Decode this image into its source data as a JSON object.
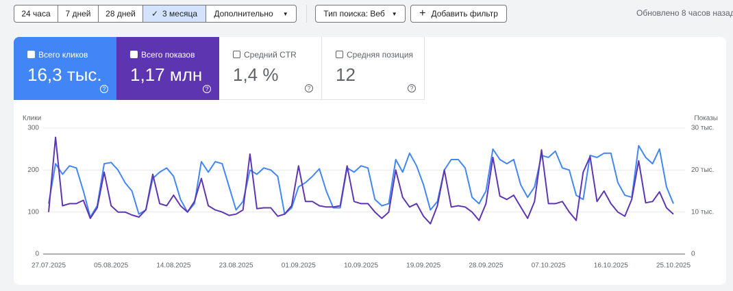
{
  "toolbar": {
    "periods": [
      "24 часа",
      "7 дней",
      "28 дней",
      "3 месяца"
    ],
    "more": "Дополнительно",
    "search_type": "Тип поиска: Веб",
    "add_filter": "Добавить фильтр",
    "updated": "Обновлено 8 часов назад"
  },
  "metrics": [
    {
      "label": "Всего кликов",
      "value": "16,3 тыс."
    },
    {
      "label": "Всего показов",
      "value": "1,17 млн"
    },
    {
      "label": "Средний CTR",
      "value": "1,4 %"
    },
    {
      "label": "Средняя позиция",
      "value": "12"
    }
  ],
  "chart_data": {
    "type": "line",
    "y_label": "Клики",
    "y2_label": "Показы",
    "categories": [
      "27.07.2025",
      null,
      null,
      null,
      null,
      null,
      null,
      null,
      null,
      "05.08.2025",
      null,
      null,
      null,
      null,
      null,
      null,
      null,
      null,
      "14.08.2025",
      null,
      null,
      null,
      null,
      null,
      null,
      null,
      null,
      "23.08.2025",
      null,
      null,
      null,
      null,
      null,
      null,
      null,
      null,
      "01.09.2025",
      null,
      null,
      null,
      null,
      null,
      null,
      null,
      null,
      "10.09.2025",
      null,
      null,
      null,
      null,
      null,
      null,
      null,
      null,
      "19.09.2025",
      null,
      null,
      null,
      null,
      null,
      null,
      null,
      null,
      "28.09.2025",
      null,
      null,
      null,
      null,
      null,
      null,
      null,
      null,
      "07.10.2025",
      null,
      null,
      null,
      null,
      null,
      null,
      null,
      null,
      "16.10.2025",
      null,
      null,
      null,
      null,
      null,
      null,
      null,
      null,
      "25.10.2025"
    ],
    "ylim": [
      0,
      300
    ],
    "yticks": [
      0,
      100,
      200,
      300
    ],
    "y2lim": [
      0,
      30000
    ],
    "y2ticks": [
      0,
      {
        "value": 10000,
        "label": "10 тыс."
      },
      {
        "value": 20000,
        "label": "20 тыс."
      },
      {
        "value": 30000,
        "label": "30 тыс."
      }
    ],
    "grid": true,
    "series": [
      {
        "name": "Всего кликов",
        "color": "#4285f4",
        "values": [
          120,
          215,
          190,
          210,
          205,
          150,
          88,
          115,
          215,
          218,
          200,
          170,
          150,
          95,
          105,
          180,
          195,
          205,
          185,
          130,
          100,
          120,
          220,
          195,
          220,
          215,
          160,
          105,
          125,
          200,
          190,
          205,
          200,
          185,
          95,
          110,
          160,
          170,
          185,
          203,
          150,
          110,
          110,
          205,
          195,
          210,
          205,
          130,
          115,
          120,
          225,
          195,
          240,
          210,
          165,
          105,
          125,
          200,
          225,
          225,
          205,
          135,
          120,
          150,
          250,
          225,
          215,
          225,
          165,
          135,
          160,
          235,
          230,
          245,
          205,
          200,
          140,
          130,
          235,
          230,
          240,
          240,
          170,
          140,
          135,
          258,
          230,
          215,
          250,
          160,
          120
        ]
      },
      {
        "name": "Всего показов",
        "color": "#5e35b1",
        "axis": "y2",
        "values": [
          10000,
          27800,
          11500,
          12000,
          12000,
          12800,
          8500,
          11000,
          19500,
          11500,
          10000,
          10000,
          9300,
          8800,
          10500,
          19000,
          12000,
          11500,
          14000,
          11500,
          10000,
          12500,
          18000,
          11500,
          10500,
          10000,
          9200,
          9500,
          10500,
          23800,
          10800,
          11000,
          11000,
          9000,
          9500,
          11500,
          21000,
          12500,
          12500,
          11500,
          11200,
          11200,
          11500,
          21000,
          12500,
          12000,
          12000,
          10000,
          8500,
          10000,
          20000,
          13500,
          11200,
          12000,
          9000,
          7200,
          11500,
          20000,
          11200,
          11500,
          11200,
          10000,
          8000,
          12000,
          23000,
          13800,
          13000,
          14000,
          11200,
          8500,
          12500,
          24800,
          12000,
          12000,
          12500,
          10000,
          8000,
          19500,
          23200,
          12500,
          15000,
          12000,
          10000,
          9000,
          13000,
          22200,
          12200,
          12500,
          14800,
          11000,
          9500
        ]
      }
    ]
  }
}
